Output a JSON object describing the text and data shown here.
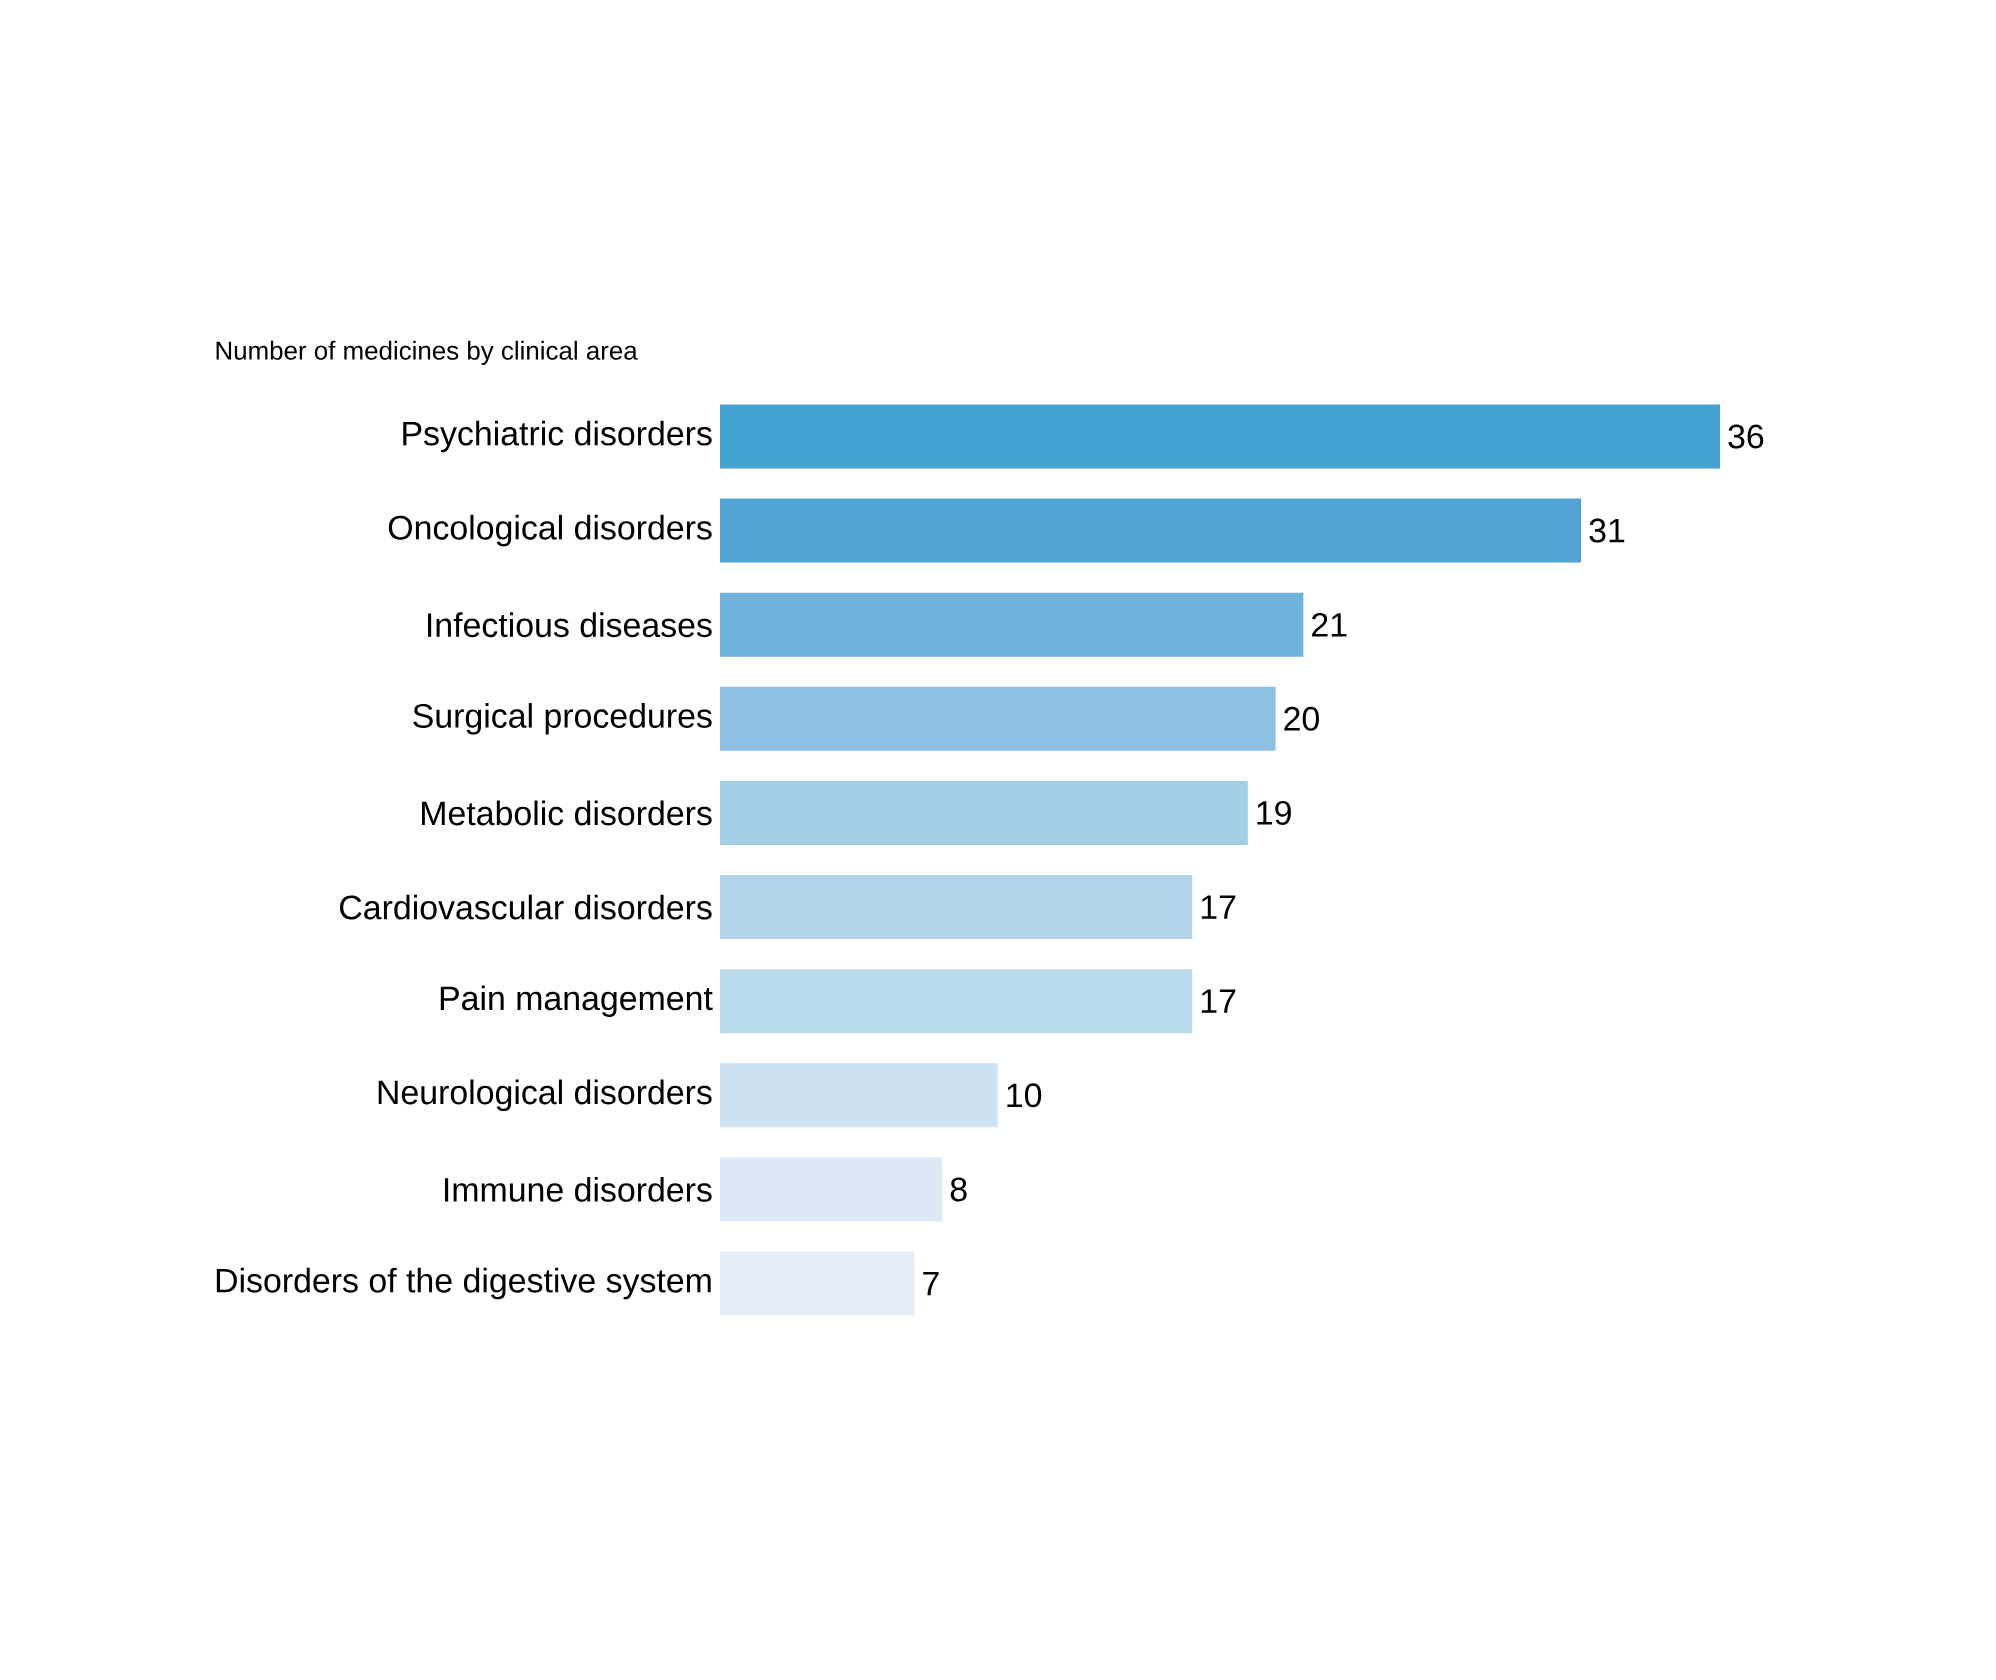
{
  "chart_data": {
    "type": "bar",
    "orientation": "horizontal",
    "title": "Number of medicines by clinical area",
    "categories": [
      "Psychiatric disorders",
      "Oncological disorders",
      "Infectious diseases",
      "Surgical procedures",
      "Metabolic disorders",
      "Cardiovascular disorders",
      "Pain management",
      "Neurological disorders",
      "Immune disorders",
      "Disorders of the digestive system"
    ],
    "values": [
      36,
      31,
      21,
      20,
      19,
      17,
      17,
      10,
      8,
      7
    ],
    "colors": [
      "#45a3d4",
      "#52a3d3",
      "#6eb1da",
      "#8ec0e1",
      "#a3cce7",
      "#b2d4ea",
      "#badaee",
      "#cde1f1",
      "#dbe8f5",
      "#e5eef8"
    ],
    "data_labels": true
  }
}
